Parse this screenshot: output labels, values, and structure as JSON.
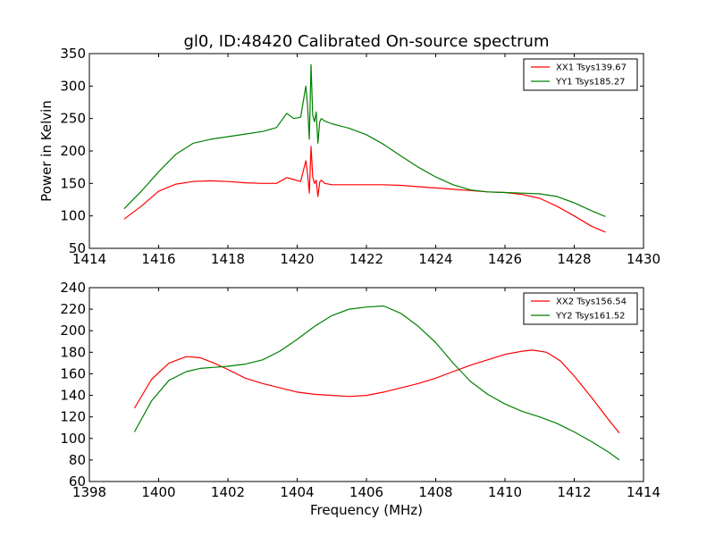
{
  "chart_data": [
    {
      "type": "line",
      "title": "gl0, ID:48420 Calibrated On-source spectrum",
      "xlabel": "",
      "ylabel": "Power in Kelvin",
      "xlim": [
        1414,
        1430
      ],
      "ylim": [
        50,
        350
      ],
      "xticks": [
        1414,
        1416,
        1418,
        1420,
        1422,
        1424,
        1426,
        1428,
        1430
      ],
      "yticks": [
        50,
        100,
        150,
        200,
        250,
        300,
        350
      ],
      "legend": "top-right",
      "grid": false,
      "series": [
        {
          "name": "XX1 Tsys139.67",
          "color": "#ff0000",
          "x": [
            1415.0,
            1415.5,
            1416.0,
            1416.5,
            1417.0,
            1417.5,
            1418.0,
            1418.5,
            1419.0,
            1419.4,
            1419.7,
            1419.9,
            1420.1,
            1420.25,
            1420.3,
            1420.35,
            1420.4,
            1420.45,
            1420.5,
            1420.55,
            1420.6,
            1420.65,
            1420.7,
            1420.8,
            1421.0,
            1421.5,
            1422.0,
            1422.5,
            1423.0,
            1423.5,
            1424.0,
            1424.5,
            1425.0,
            1425.5,
            1426.0,
            1426.5,
            1427.0,
            1427.5,
            1428.0,
            1428.5,
            1428.9
          ],
          "values": [
            95,
            115,
            138,
            149,
            153,
            154,
            153,
            151,
            150,
            150,
            159,
            156,
            153,
            185,
            165,
            135,
            207,
            160,
            150,
            155,
            130,
            152,
            155,
            150,
            148,
            148,
            148,
            148,
            147,
            145,
            143,
            141,
            139,
            137,
            136,
            133,
            127,
            115,
            100,
            84,
            75
          ]
        },
        {
          "name": "YY1 Tsys185.27",
          "color": "#008000",
          "x": [
            1415.0,
            1415.5,
            1416.0,
            1416.5,
            1417.0,
            1417.5,
            1418.0,
            1418.5,
            1419.0,
            1419.4,
            1419.7,
            1419.9,
            1420.1,
            1420.25,
            1420.3,
            1420.35,
            1420.4,
            1420.45,
            1420.5,
            1420.55,
            1420.6,
            1420.65,
            1420.7,
            1420.8,
            1421.0,
            1421.5,
            1422.0,
            1422.5,
            1423.0,
            1423.5,
            1424.0,
            1424.5,
            1425.0,
            1425.5,
            1426.0,
            1426.5,
            1427.0,
            1427.5,
            1428.0,
            1428.5,
            1428.9
          ],
          "values": [
            111,
            138,
            168,
            195,
            212,
            218,
            222,
            226,
            230,
            236,
            258,
            250,
            252,
            300,
            270,
            218,
            333,
            255,
            245,
            260,
            212,
            245,
            250,
            246,
            242,
            235,
            225,
            210,
            192,
            175,
            160,
            148,
            140,
            137,
            136,
            135,
            134,
            130,
            120,
            108,
            99
          ]
        }
      ]
    },
    {
      "type": "line",
      "title": "",
      "xlabel": "Frequency (MHz)",
      "ylabel": "",
      "xlim": [
        1398,
        1414
      ],
      "ylim": [
        60,
        240
      ],
      "xticks": [
        1398,
        1400,
        1402,
        1404,
        1406,
        1408,
        1410,
        1412,
        1414
      ],
      "yticks": [
        60,
        80,
        100,
        120,
        140,
        160,
        180,
        200,
        220,
        240
      ],
      "legend": "top-right",
      "grid": false,
      "series": [
        {
          "name": "XX2 Tsys156.54",
          "color": "#ff0000",
          "x": [
            1399.3,
            1399.8,
            1400.3,
            1400.8,
            1401.2,
            1401.6,
            1402.0,
            1402.5,
            1403.0,
            1403.5,
            1404.0,
            1404.5,
            1405.0,
            1405.5,
            1406.0,
            1406.5,
            1407.0,
            1407.5,
            1408.0,
            1408.5,
            1409.0,
            1409.5,
            1410.0,
            1410.5,
            1410.8,
            1411.2,
            1411.6,
            1412.0,
            1412.5,
            1413.0,
            1413.3
          ],
          "values": [
            128,
            155,
            170,
            176,
            175,
            170,
            164,
            156,
            151,
            147,
            143,
            141,
            140,
            139,
            140,
            143,
            147,
            151,
            156,
            162,
            168,
            173,
            178,
            181,
            182,
            180,
            172,
            158,
            138,
            117,
            105
          ]
        },
        {
          "name": "YY2 Tsys161.52",
          "color": "#008000",
          "x": [
            1399.3,
            1399.8,
            1400.3,
            1400.8,
            1401.2,
            1401.6,
            1402.0,
            1402.5,
            1403.0,
            1403.5,
            1404.0,
            1404.5,
            1405.0,
            1405.5,
            1406.0,
            1406.5,
            1407.0,
            1407.5,
            1408.0,
            1408.5,
            1409.0,
            1409.5,
            1410.0,
            1410.5,
            1411.0,
            1411.5,
            1412.0,
            1412.5,
            1413.0,
            1413.3
          ],
          "values": [
            106,
            135,
            154,
            162,
            165,
            166,
            167,
            169,
            173,
            181,
            192,
            204,
            214,
            220,
            222,
            223,
            216,
            204,
            189,
            170,
            153,
            141,
            132,
            125,
            120,
            114,
            106,
            97,
            87,
            80
          ]
        }
      ]
    }
  ]
}
